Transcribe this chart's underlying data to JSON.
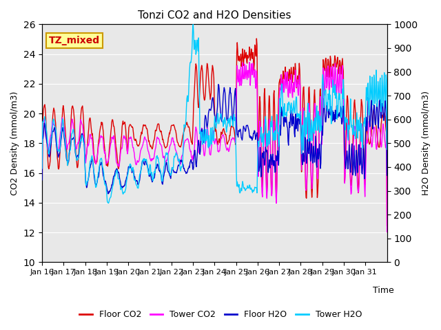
{
  "title": "Tonzi CO2 and H2O Densities",
  "xlabel": "Time",
  "ylabel_left": "CO2 Density (mmol/m3)",
  "ylabel_right": "H2O Density (mmol/m3)",
  "ylim_left": [
    10,
    26
  ],
  "ylim_right": [
    0,
    1000
  ],
  "yticks_left": [
    10,
    12,
    14,
    16,
    18,
    20,
    22,
    24,
    26
  ],
  "yticks_right": [
    0,
    100,
    200,
    300,
    400,
    500,
    600,
    700,
    800,
    900,
    1000
  ],
  "xtick_labels": [
    "Jan 16",
    "Jan 17",
    "Jan 18",
    "Jan 19",
    "Jan 20",
    "Jan 21",
    "Jan 22",
    "Jan 23",
    "Jan 24",
    "Jan 25",
    "Jan 26",
    "Jan 27",
    "Jan 28",
    "Jan 29",
    "Jan 30",
    "Jan 31"
  ],
  "annotation_text": "TZ_mixed",
  "annotation_color": "#cc0000",
  "annotation_bg": "#ffff99",
  "annotation_border": "#cc9900",
  "colors": {
    "floor_co2": "#dd0000",
    "tower_co2": "#ff00ff",
    "floor_h2o": "#0000cc",
    "tower_h2o": "#00ccff"
  },
  "legend_labels": [
    "Floor CO2",
    "Tower CO2",
    "Floor H2O",
    "Tower H2O"
  ],
  "background_color": "#e8e8e8",
  "grid_color": "#ffffff"
}
